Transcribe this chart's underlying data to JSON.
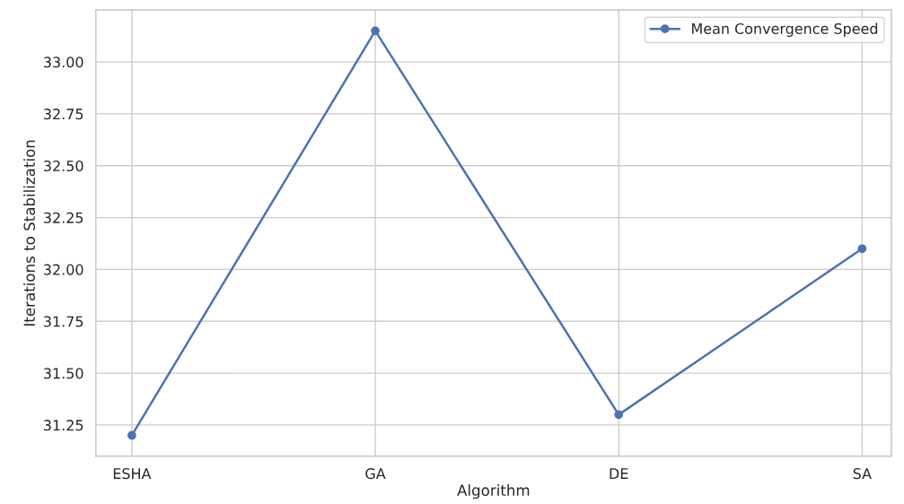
{
  "chart_data": {
    "type": "line",
    "xlabel": "Algorithm",
    "ylabel": "Iterations to Stabilization",
    "categories": [
      "ESHA",
      "GA",
      "DE",
      "SA"
    ],
    "series": [
      {
        "name": "Mean Convergence Speed",
        "color": "#4c72b0",
        "values": [
          31.2,
          33.15,
          31.3,
          32.1
        ]
      }
    ],
    "ylim": [
      31.1,
      33.25
    ],
    "yticks": [
      31.25,
      {
        "value": 31.5,
        "label": "31.50"
      },
      31.75,
      {
        "value": 32.0,
        "label": "32.00"
      },
      32.25,
      {
        "value": 32.5,
        "label": "32.50"
      },
      32.75,
      {
        "value": 33.0,
        "label": "33.00"
      }
    ],
    "marker": "circle",
    "line_style": "solid",
    "grid": true,
    "legend": "top right"
  }
}
